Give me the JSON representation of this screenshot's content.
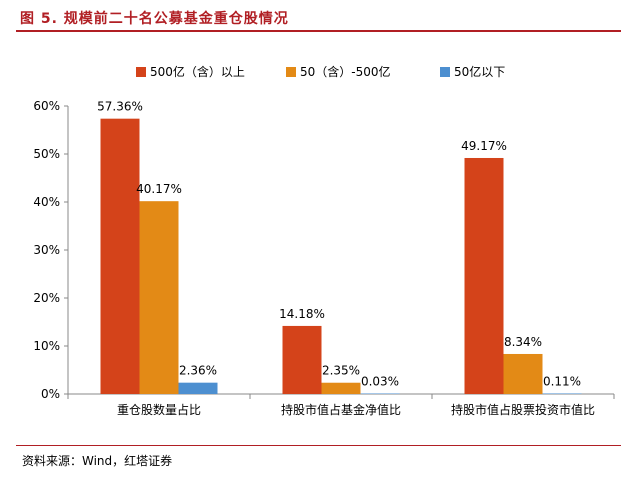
{
  "figure_title": "图 5. 规模前二十名公募基金重仓股情况",
  "source": "资料来源：Wind，红塔证券",
  "colors": {
    "series": [
      "#d4431a",
      "#e38a16",
      "#4d8fd0"
    ],
    "accent": "#b11f24"
  },
  "chart_data": {
    "type": "bar",
    "title": "",
    "xlabel": "",
    "ylabel": "",
    "categories": [
      "重仓股数量占比",
      "持股市值占基金净值比",
      "持股市值占股票投资市值比"
    ],
    "series": [
      {
        "name": "500亿（含）以上",
        "values": [
          57.36,
          14.18,
          49.17
        ],
        "labels": [
          "57.36%",
          "14.18%",
          "49.17%"
        ]
      },
      {
        "name": "50（含）-500亿",
        "values": [
          40.17,
          2.35,
          8.34
        ],
        "labels": [
          "40.17%",
          "2.35%",
          "8.34%"
        ]
      },
      {
        "name": "50亿以下",
        "values": [
          2.36,
          0.03,
          0.11
        ],
        "labels": [
          "2.36%",
          "0.03%",
          "0.11%"
        ]
      }
    ],
    "ylim": [
      0,
      60
    ],
    "yticks": [
      0,
      10,
      20,
      30,
      40,
      50,
      60
    ],
    "ytick_labels": [
      "0%",
      "10%",
      "20%",
      "30%",
      "40%",
      "50%",
      "60%"
    ],
    "legend_position": "top-center",
    "grid": false
  }
}
